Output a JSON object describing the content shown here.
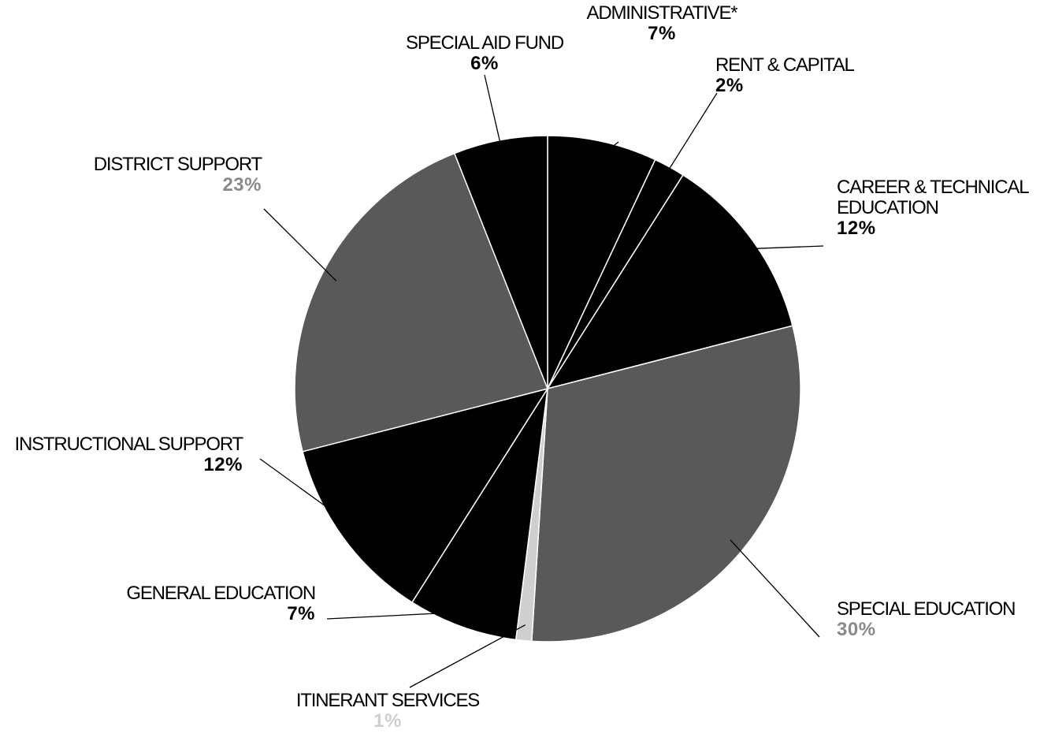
{
  "chart_data": {
    "type": "pie",
    "categories": [
      "ADMINISTRATIVE*",
      "RENT & CAPITAL",
      "CAREER & TECHNICAL\nEDUCATION",
      "SPECIAL EDUCATION",
      "ITINERANT SERVICES",
      "GENERAL EDUCATION",
      "INSTRUCTIONAL SUPPORT",
      "DISTRICT SUPPORT",
      "SPECIAL AID FUND"
    ],
    "values": [
      7,
      2,
      12,
      30,
      1,
      7,
      12,
      23,
      6
    ],
    "value_labels": [
      "7%",
      "2%",
      "12%",
      "30%",
      "1%",
      "7%",
      "12%",
      "23%",
      "6%"
    ],
    "colors": [
      "#000000",
      "#000000",
      "#000000",
      "#595959",
      "#cfcfcf",
      "#000000",
      "#000000",
      "#595959",
      "#000000"
    ]
  }
}
